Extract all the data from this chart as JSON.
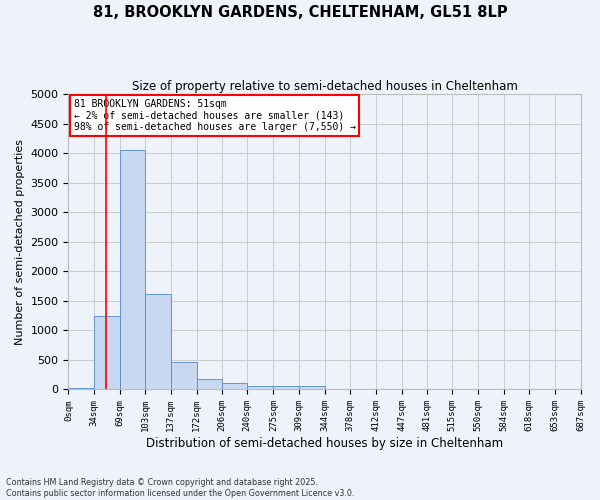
{
  "title1": "81, BROOKLYN GARDENS, CHELTENHAM, GL51 8LP",
  "title2": "Size of property relative to semi-detached houses in Cheltenham",
  "xlabel": "Distribution of semi-detached houses by size in Cheltenham",
  "ylabel": "Number of semi-detached properties",
  "bin_labels": [
    "0sqm",
    "34sqm",
    "69sqm",
    "103sqm",
    "137sqm",
    "172sqm",
    "206sqm",
    "240sqm",
    "275sqm",
    "309sqm",
    "344sqm",
    "378sqm",
    "412sqm",
    "447sqm",
    "481sqm",
    "515sqm",
    "550sqm",
    "584sqm",
    "618sqm",
    "653sqm",
    "687sqm"
  ],
  "bin_edges": [
    0,
    34,
    69,
    103,
    137,
    172,
    206,
    240,
    275,
    309,
    344,
    378,
    412,
    447,
    481,
    515,
    550,
    584,
    618,
    653,
    687
  ],
  "bar_heights": [
    30,
    1250,
    4050,
    1620,
    460,
    185,
    110,
    60,
    55,
    55,
    15,
    5,
    3,
    2,
    1,
    1,
    0,
    0,
    0,
    0
  ],
  "bar_color": "#c8d8f0",
  "bar_edge_color": "#5588cc",
  "ylim": [
    0,
    5000
  ],
  "red_line_x": 51,
  "annotation_line1": "81 BROOKLYN GARDENS: 51sqm",
  "annotation_line2": "← 2% of semi-detached houses are smaller (143)",
  "annotation_line3": "98% of semi-detached houses are larger (7,550) →",
  "annotation_box_color": "white",
  "annotation_box_edge_color": "red",
  "grid_color": "#cccccc",
  "background_color": "#eef2fb",
  "footer_text": "Contains HM Land Registry data © Crown copyright and database right 2025.\nContains public sector information licensed under the Open Government Licence v3.0.",
  "yticks": [
    0,
    500,
    1000,
    1500,
    2000,
    2500,
    3000,
    3500,
    4000,
    4500,
    5000
  ]
}
